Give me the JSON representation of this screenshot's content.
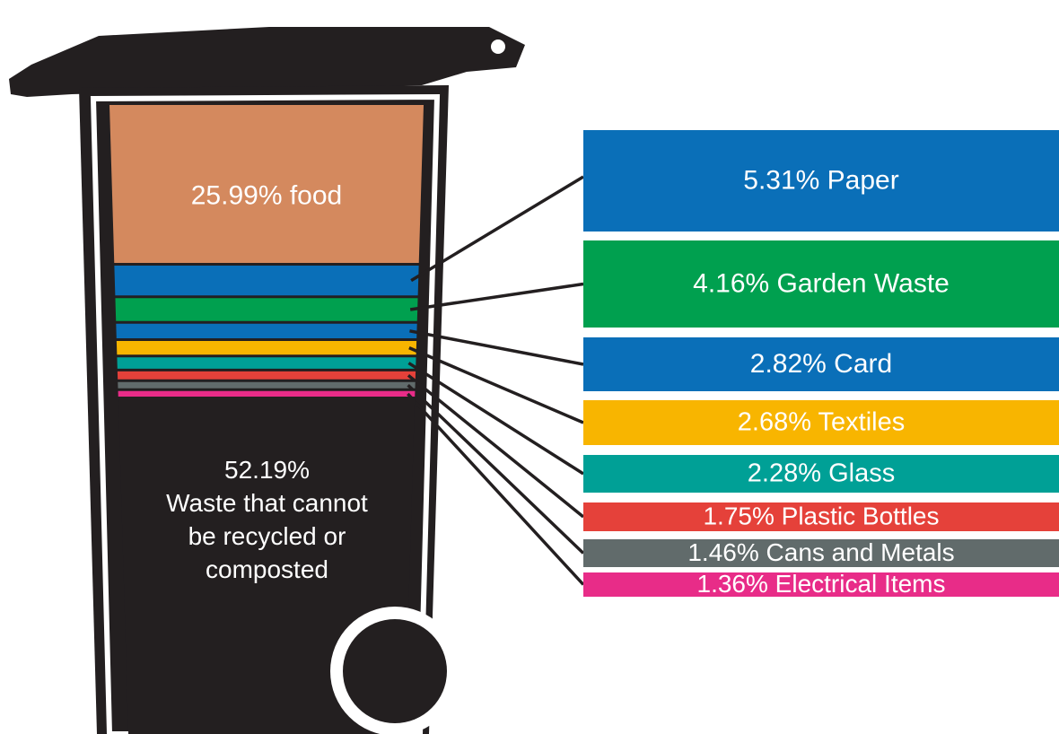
{
  "chart_data": {
    "type": "bar",
    "values": [
      25.99,
      5.31,
      4.16,
      2.82,
      2.68,
      2.28,
      1.75,
      1.46,
      1.36,
      52.19
    ],
    "value_labels": [
      "25.99% food",
      "5.31% Paper",
      "4.16% Garden Waste",
      "2.82% Card",
      "2.68% Textiles",
      "2.28% Glass",
      "1.75% Plastic Bottles",
      "1.46% Cans and Metals",
      "1.36% Electrical Items",
      "52.19%\nWaste that cannot\nbe recycled or\ncomposted"
    ],
    "colors": [
      "#d4895e",
      "#0a6fb8",
      "#00a04f",
      "#0a6fb8",
      "#f8b500",
      "#00a096",
      "#e5413a",
      "#616b6b",
      "#e82c88",
      "#231f20"
    ]
  }
}
